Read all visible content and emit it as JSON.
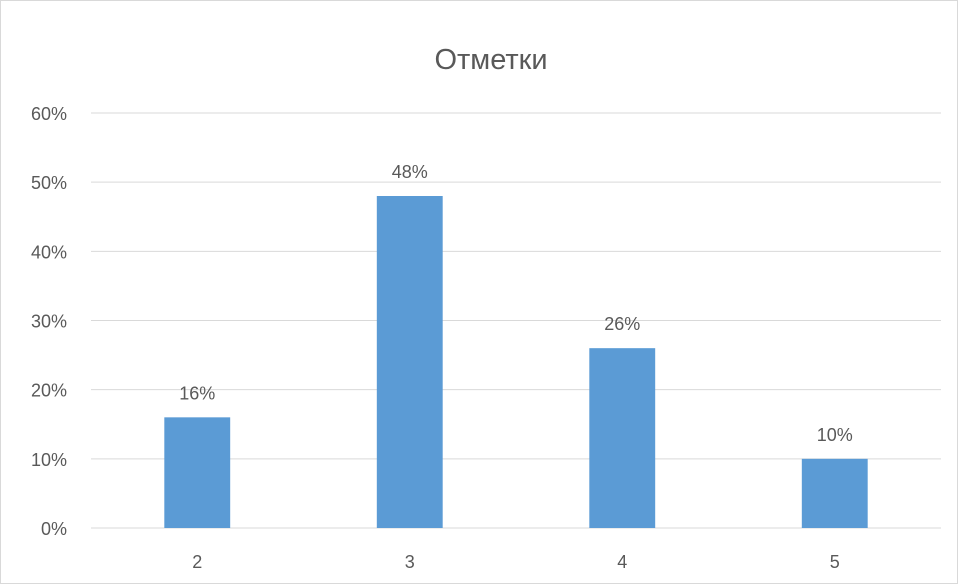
{
  "chart_data": {
    "type": "bar",
    "title": "Отметки",
    "categories": [
      "2",
      "3",
      "4",
      "5"
    ],
    "values": [
      16,
      48,
      26,
      10
    ],
    "data_labels": [
      "16%",
      "48%",
      "26%",
      "10%"
    ],
    "ylim": [
      0,
      60
    ],
    "yticks": [
      0,
      10,
      20,
      30,
      40,
      50,
      60
    ],
    "ytick_labels": [
      "0%",
      "10%",
      "20%",
      "30%",
      "40%",
      "50%",
      "60%"
    ],
    "xlabel": "",
    "ylabel": "",
    "grid": true,
    "legend": "none",
    "colors": {
      "bar": "#5b9bd5",
      "grid": "#d9d9d9",
      "text": "#595959"
    }
  }
}
